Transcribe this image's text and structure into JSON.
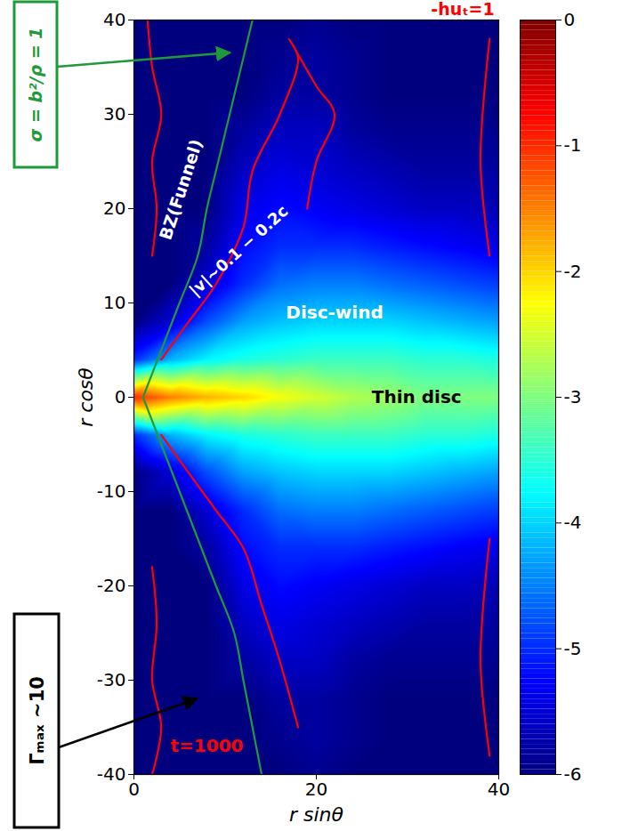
{
  "chart_data": {
    "type": "heatmap",
    "x_label": "r sinθ",
    "y_label": "r cosθ",
    "xlim": [
      0,
      40
    ],
    "ylim": [
      -40,
      40
    ],
    "xticks": [
      0,
      20,
      40
    ],
    "yticks": [
      -40,
      -30,
      -20,
      -10,
      0,
      10,
      20,
      30,
      40
    ],
    "cells": {
      "x": [
        0,
        4,
        8,
        12,
        16,
        20,
        24,
        28,
        32,
        36,
        40
      ],
      "y": [
        -40,
        -36,
        -32,
        -28,
        -24,
        -20,
        -16,
        -12,
        -8,
        -4,
        0,
        4,
        8,
        12,
        16,
        20,
        24,
        28,
        32,
        36,
        40
      ],
      "values": [
        [
          -6,
          -6,
          -6,
          -6,
          -6,
          -5.9,
          -6,
          -6,
          -6,
          -6,
          -6
        ],
        [
          -6,
          -6,
          -6,
          -6,
          -5.9,
          -5.8,
          -5.9,
          -6,
          -6,
          -6,
          -6
        ],
        [
          -6,
          -6,
          -6,
          -6,
          -5.8,
          -5.8,
          -5.9,
          -6,
          -6,
          -6,
          -6
        ],
        [
          -6,
          -6,
          -6,
          -5.8,
          -5.6,
          -5.6,
          -5.8,
          -5.9,
          -5.9,
          -5.9,
          -5.9
        ],
        [
          -6,
          -6,
          -6,
          -5.6,
          -5.4,
          -5.5,
          -5.6,
          -5.7,
          -5.8,
          -5.8,
          -5.8
        ],
        [
          -6,
          -6,
          -6,
          -5.4,
          -5.2,
          -5.3,
          -5.4,
          -5.5,
          -5.6,
          -5.6,
          -5.7
        ],
        [
          -6,
          -6,
          -5.8,
          -5.2,
          -5,
          -5,
          -5,
          -5.1,
          -5.2,
          -5.3,
          -5.4
        ],
        [
          -6,
          -6,
          -5.5,
          -5,
          -4.6,
          -4.5,
          -4.5,
          -4.6,
          -4.7,
          -4.8,
          -4.9
        ],
        [
          -6,
          -5.5,
          -4.8,
          -4.3,
          -4.1,
          -4,
          -4,
          -4,
          -4.1,
          -4.2,
          -4.3
        ],
        [
          -5,
          -4.2,
          -3.8,
          -3.6,
          -3.5,
          -3.4,
          -3.4,
          -3.4,
          -3.5,
          -3.5,
          -3.6
        ],
        [
          -1,
          -1.5,
          -1.8,
          -2,
          -2.3,
          -2.5,
          -2.7,
          -2.8,
          -3,
          -3,
          -3
        ],
        [
          -5,
          -4.2,
          -3.8,
          -3.6,
          -3.5,
          -3.4,
          -3.4,
          -3.4,
          -3.5,
          -3.5,
          -3.6
        ],
        [
          -6,
          -5.5,
          -4.8,
          -4.3,
          -4.1,
          -4,
          -4,
          -4,
          -4.1,
          -4.2,
          -4.3
        ],
        [
          -6,
          -6,
          -5.5,
          -5,
          -4.6,
          -4.5,
          -4.5,
          -4.6,
          -4.7,
          -4.8,
          -4.9
        ],
        [
          -6,
          -6,
          -5.8,
          -5.2,
          -5,
          -5,
          -5,
          -5.1,
          -5.2,
          -5.3,
          -5.4
        ],
        [
          -6,
          -6,
          -6,
          -5.4,
          -5.2,
          -5.3,
          -5.4,
          -5.5,
          -5.6,
          -5.6,
          -5.7
        ],
        [
          -6,
          -6,
          -6,
          -5.6,
          -5.4,
          -5.5,
          -5.6,
          -5.7,
          -5.8,
          -5.8,
          -5.8
        ],
        [
          -6,
          -6,
          -6,
          -5.8,
          -5.6,
          -5.6,
          -5.8,
          -5.9,
          -5.9,
          -5.9,
          -5.9
        ],
        [
          -6,
          -6,
          -6,
          -6,
          -5.8,
          -5.8,
          -5.9,
          -6,
          -6,
          -6,
          -6
        ],
        [
          -6,
          -6,
          -6,
          -6,
          -5.9,
          -5.8,
          -5.9,
          -6,
          -6,
          -6,
          -6
        ],
        [
          -6,
          -6,
          -6,
          -6,
          -6,
          -5.9,
          -6,
          -6,
          -6,
          -6,
          -6
        ]
      ]
    },
    "colorbar": {
      "lim": [
        -6,
        0
      ],
      "ticks": [
        0,
        -1,
        -2,
        -3,
        -4,
        -5,
        -6
      ]
    },
    "series": [
      {
        "name": "-huₜ=1",
        "color": "red",
        "x": [
          2,
          2.5,
          2,
          3,
          2,
          1.5,
          null,
          2,
          2.5,
          2,
          3,
          2,
          null,
          3,
          6,
          9,
          12,
          13,
          16,
          18,
          17,
          20,
          22,
          20,
          19,
          null,
          3,
          6,
          9,
          12,
          14,
          16,
          18,
          null,
          39,
          38,
          39,
          null,
          39,
          38,
          39
        ],
        "y": [
          15,
          20,
          25,
          30,
          35,
          40,
          null,
          -18,
          -24,
          -30,
          -35,
          -40,
          null,
          4,
          8,
          12,
          18,
          24,
          30,
          36,
          38,
          33,
          30,
          25,
          20,
          null,
          -4,
          -8,
          -12,
          -16,
          -22,
          -28,
          -35,
          null,
          38,
          25,
          15,
          null,
          -15,
          -28,
          -38
        ]
      },
      {
        "name": "σ = b²/ρ = 1",
        "color": "#1f9a3a",
        "x": [
          1,
          3,
          5,
          7,
          8,
          9,
          10,
          11,
          12,
          13,
          null,
          1,
          3,
          5,
          7,
          9,
          11,
          12,
          13,
          14
        ],
        "y": [
          0,
          5,
          10,
          15,
          20,
          24,
          28,
          32,
          36,
          40,
          null,
          0,
          -5,
          -10,
          -15,
          -20,
          -25,
          -30,
          -35,
          -40
        ]
      }
    ],
    "annotations": [
      "BZ(Funnel)",
      "|v|~0.1 − 0.2c",
      "Disc-wind",
      "Thin disc",
      "Γₘₐₓ ~10",
      "t=1000"
    ]
  }
}
